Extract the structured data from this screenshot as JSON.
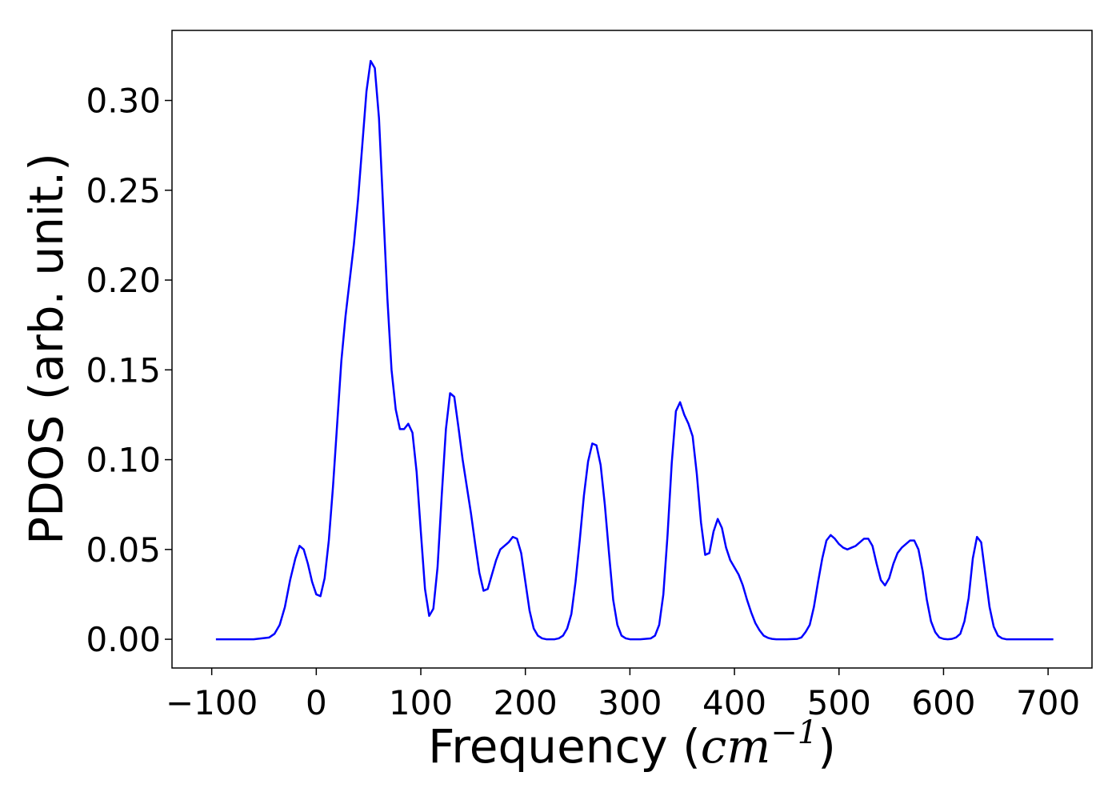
{
  "chart_data": {
    "type": "line",
    "xlabel_prefix": "Frequency (",
    "xlabel_unit_base": "cm",
    "xlabel_unit_exp": "−1",
    "xlabel_suffix": ")",
    "ylabel": "PDOS (arb. unit.)",
    "xlim": [
      -138,
      742
    ],
    "ylim": [
      -0.016,
      0.339
    ],
    "x_ticks": [
      -100,
      0,
      100,
      200,
      300,
      400,
      500,
      600,
      700
    ],
    "x_tick_labels": [
      "−100",
      "0",
      "100",
      "200",
      "300",
      "400",
      "500",
      "600",
      "700"
    ],
    "y_ticks": [
      0.0,
      0.05,
      0.1,
      0.15,
      0.2,
      0.25,
      0.3
    ],
    "y_tick_labels": [
      "0.00",
      "0.05",
      "0.10",
      "0.15",
      "0.20",
      "0.25",
      "0.30"
    ],
    "grid": false,
    "legend": "none",
    "series": [
      {
        "color": "#0000ff",
        "x": [
          -96,
          -80,
          -60,
          -45,
          -40,
          -35,
          -30,
          -25,
          -20,
          -16,
          -12,
          -8,
          -4,
          0,
          4,
          8,
          12,
          16,
          20,
          24,
          28,
          32,
          36,
          40,
          44,
          48,
          52,
          56,
          60,
          64,
          68,
          72,
          76,
          80,
          84,
          88,
          92,
          96,
          100,
          104,
          108,
          112,
          116,
          120,
          124,
          128,
          132,
          136,
          140,
          144,
          148,
          152,
          156,
          160,
          164,
          168,
          172,
          176,
          180,
          184,
          188,
          192,
          196,
          200,
          204,
          208,
          212,
          216,
          220,
          224,
          228,
          232,
          236,
          240,
          244,
          248,
          252,
          256,
          260,
          264,
          268,
          272,
          276,
          280,
          284,
          288,
          292,
          296,
          300,
          310,
          320,
          324,
          328,
          332,
          336,
          340,
          344,
          348,
          352,
          356,
          360,
          364,
          368,
          372,
          376,
          380,
          384,
          388,
          392,
          396,
          400,
          404,
          408,
          412,
          416,
          420,
          424,
          428,
          432,
          436,
          440,
          450,
          460,
          464,
          468,
          472,
          476,
          480,
          484,
          488,
          492,
          496,
          500,
          504,
          508,
          512,
          516,
          520,
          524,
          528,
          532,
          536,
          540,
          544,
          548,
          552,
          556,
          560,
          564,
          568,
          572,
          576,
          580,
          584,
          588,
          592,
          596,
          600,
          604,
          608,
          612,
          616,
          620,
          624,
          628,
          632,
          636,
          640,
          644,
          648,
          652,
          656,
          660,
          680,
          705
        ],
        "y": [
          0,
          0,
          0,
          0.001,
          0.003,
          0.008,
          0.018,
          0.033,
          0.045,
          0.052,
          0.05,
          0.042,
          0.032,
          0.025,
          0.024,
          0.034,
          0.055,
          0.085,
          0.12,
          0.155,
          0.18,
          0.2,
          0.22,
          0.245,
          0.275,
          0.305,
          0.322,
          0.318,
          0.29,
          0.24,
          0.19,
          0.15,
          0.128,
          0.117,
          0.117,
          0.12,
          0.115,
          0.093,
          0.06,
          0.028,
          0.013,
          0.017,
          0.04,
          0.08,
          0.117,
          0.137,
          0.135,
          0.118,
          0.1,
          0.085,
          0.07,
          0.053,
          0.037,
          0.027,
          0.028,
          0.036,
          0.044,
          0.05,
          0.052,
          0.054,
          0.057,
          0.056,
          0.048,
          0.032,
          0.016,
          0.006,
          0.002,
          0.0005,
          0,
          0,
          0,
          0.0005,
          0.002,
          0.006,
          0.014,
          0.032,
          0.055,
          0.08,
          0.099,
          0.109,
          0.108,
          0.097,
          0.075,
          0.048,
          0.022,
          0.008,
          0.002,
          0.0005,
          0,
          0,
          0.0005,
          0.002,
          0.008,
          0.025,
          0.058,
          0.098,
          0.127,
          0.132,
          0.125,
          0.12,
          0.113,
          0.092,
          0.065,
          0.047,
          0.048,
          0.06,
          0.067,
          0.062,
          0.051,
          0.044,
          0.04,
          0.036,
          0.03,
          0.022,
          0.015,
          0.009,
          0.005,
          0.002,
          0.0008,
          0.0002,
          0,
          0,
          0.0002,
          0.001,
          0.004,
          0.008,
          0.018,
          0.032,
          0.045,
          0.055,
          0.058,
          0.056,
          0.053,
          0.051,
          0.05,
          0.051,
          0.052,
          0.054,
          0.056,
          0.056,
          0.052,
          0.042,
          0.033,
          0.03,
          0.034,
          0.042,
          0.048,
          0.051,
          0.053,
          0.055,
          0.055,
          0.05,
          0.038,
          0.022,
          0.01,
          0.004,
          0.001,
          0.0002,
          0,
          0.0002,
          0.001,
          0.003,
          0.01,
          0.023,
          0.045,
          0.057,
          0.054,
          0.036,
          0.018,
          0.007,
          0.002,
          0.0005,
          0,
          0,
          0
        ]
      }
    ]
  }
}
